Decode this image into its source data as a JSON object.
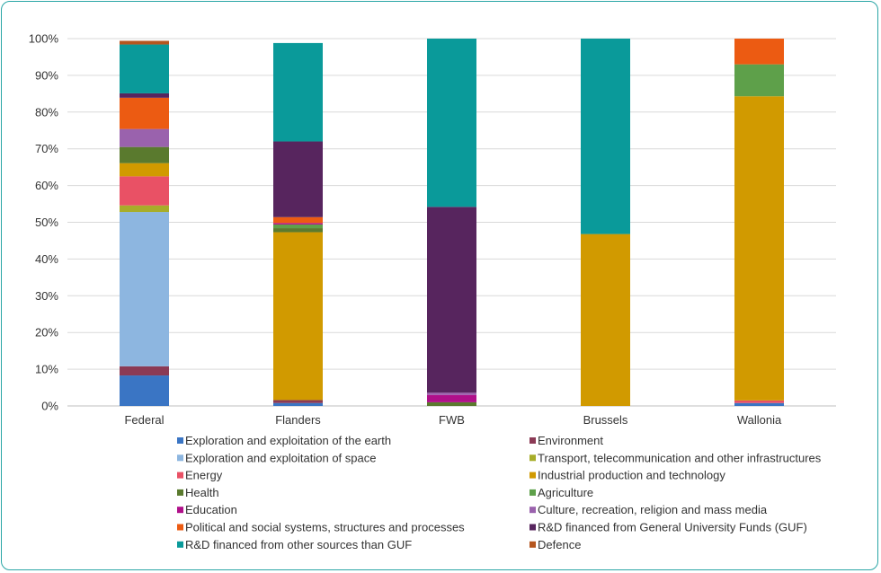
{
  "chart_data": {
    "type": "bar",
    "stacked": true,
    "percent": true,
    "categories": [
      "Federal",
      "Flanders",
      "FWB",
      "Brussels",
      "Wallonia"
    ],
    "ylim": [
      0,
      100
    ],
    "yticks": [
      "0%",
      "10%",
      "20%",
      "30%",
      "40%",
      "50%",
      "60%",
      "70%",
      "80%",
      "90%",
      "100%"
    ],
    "grid": true,
    "legend_position": "bottom",
    "series": [
      {
        "name": "Exploration and exploitation of the earth",
        "color": "#3a75c4",
        "values": [
          8.3,
          0.8,
          0,
          0,
          0.8
        ]
      },
      {
        "name": "Environment",
        "color": "#8b3a55",
        "values": [
          2.5,
          0.8,
          0,
          0,
          0
        ]
      },
      {
        "name": "Exploration and exploitation of space",
        "color": "#8db6e0",
        "values": [
          42.0,
          0,
          0,
          0,
          0
        ]
      },
      {
        "name": "Transport, telecommunication and other infrastructures",
        "color": "#a7ad2a",
        "values": [
          1.8,
          0,
          0,
          0,
          0
        ]
      },
      {
        "name": "Energy",
        "color": "#e95165",
        "values": [
          7.9,
          0,
          0,
          0,
          0.7
        ]
      },
      {
        "name": "Industrial production and technology",
        "color": "#d19a00",
        "values": [
          3.6,
          45.7,
          0,
          46.8,
          82.8
        ]
      },
      {
        "name": "Health",
        "color": "#5a7a2e",
        "values": [
          4.4,
          1.1,
          1.0,
          0,
          0
        ]
      },
      {
        "name": "Agriculture",
        "color": "#5ea04a",
        "values": [
          0,
          1.0,
          0,
          0,
          8.7
        ]
      },
      {
        "name": "Education",
        "color": "#b0108a",
        "values": [
          0,
          0.4,
          2.0,
          0,
          0
        ]
      },
      {
        "name": "Culture, recreation, religion and mass media",
        "color": "#9a62ad",
        "values": [
          4.9,
          0,
          0.6,
          0,
          0
        ]
      },
      {
        "name": "Political and social systems, structures and processes",
        "color": "#ec5b12",
        "values": [
          8.5,
          1.6,
          0,
          0,
          7.0
        ]
      },
      {
        "name": "R&D financed from General University Funds (GUF)",
        "color": "#57255e",
        "values": [
          1.2,
          20.6,
          50.6,
          0,
          0
        ]
      },
      {
        "name": "R&D financed from other sources than GUF",
        "color": "#0a9a9a",
        "values": [
          13.3,
          26.8,
          45.8,
          53.2,
          0
        ]
      },
      {
        "name": "Defence",
        "color": "#b5561f",
        "values": [
          1.0,
          0,
          0,
          0,
          0
        ]
      }
    ]
  }
}
